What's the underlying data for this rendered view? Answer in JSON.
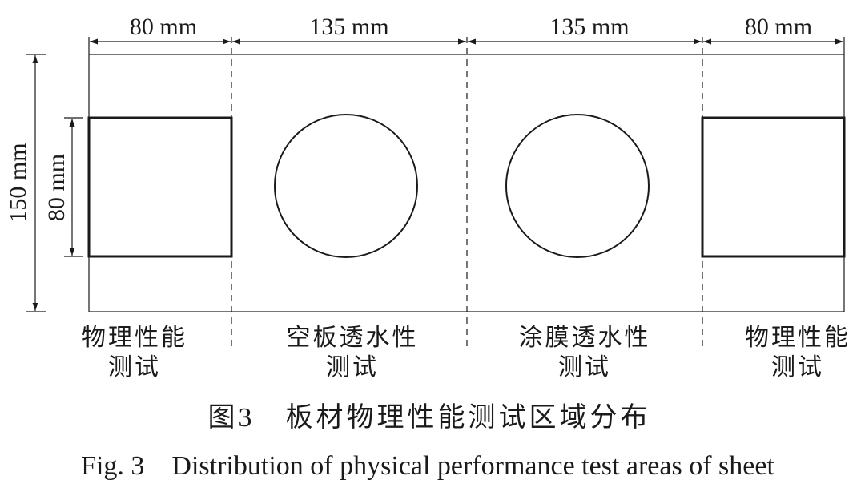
{
  "dimensions": {
    "widths": [
      "80 mm",
      "135 mm",
      "135 mm",
      "80 mm"
    ],
    "height": "150 mm",
    "square": "80 mm"
  },
  "regions": [
    {
      "lines": [
        "物理性能",
        "测试"
      ]
    },
    {
      "lines": [
        "空板透水性",
        "测试"
      ]
    },
    {
      "lines": [
        "涂膜透水性",
        "测试"
      ]
    },
    {
      "lines": [
        "物理性能",
        "测试"
      ]
    }
  ],
  "caption": {
    "cn": "图3　板材物理性能测试区域分布",
    "en": "Fig. 3　Distribution of physical performance test areas of sheet"
  }
}
